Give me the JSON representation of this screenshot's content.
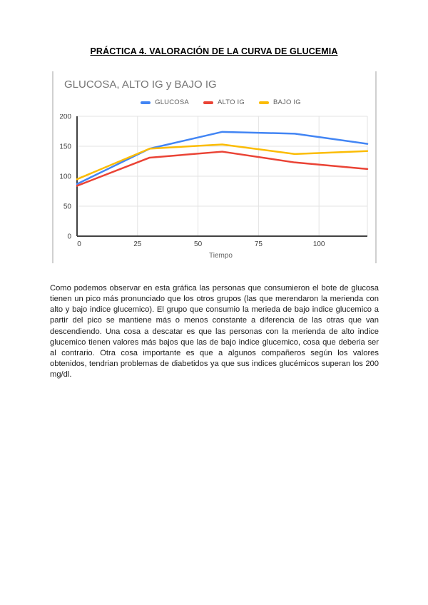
{
  "document": {
    "title": "PRÁCTICA 4. VALORACIÓN DE LA CURVA DE GLUCEMIA",
    "paragraph": "Como podemos observar en esta gráfica las personas que consumieron el bote de glucosa tienen un pico más pronunciado que los otros grupos (las que merendaron la merienda con alto y bajo indice glucemico). El grupo que consumio la merieda de bajo indice glucemico a partir del pico se mantiene más o menos constante a diferencia de las otras que van descendiendo. Una cosa a descatar es que las personas con la merienda de alto indice glucemico tienen valores más bajos que las de bajo indice glucemico, cosa que deberia ser al contrario. Otra cosa importante es que a algunos compañeros según los valores obtenidos, tendrian problemas de diabetidos ya que sus indices glucémicos superan los 200 mg/dl."
  },
  "chart_data": {
    "type": "line",
    "title": "GLUCOSA, ALTO IG y BAJO IG",
    "xlabel": "Tiempo",
    "x": [
      0,
      30,
      60,
      90,
      120
    ],
    "series": [
      {
        "name": "GLUCOSA",
        "color": "#4285F4",
        "values": [
          87,
          146,
          174,
          171,
          154
        ]
      },
      {
        "name": "ALTO IG",
        "color": "#EA4335",
        "values": [
          84,
          131,
          141,
          123,
          112
        ]
      },
      {
        "name": "BAJO IG",
        "color": "#FBBC04",
        "values": [
          95,
          146,
          153,
          137,
          142
        ]
      }
    ],
    "xlim": [
      0,
      120
    ],
    "ylim": [
      0,
      200
    ],
    "x_ticks": [
      0,
      25,
      50,
      75,
      100
    ],
    "y_ticks": [
      0,
      50,
      100,
      150,
      200
    ],
    "grid": true,
    "legend_position": "top-center",
    "axis_color": "#424242",
    "grid_color": "#e3e3e3",
    "tick_label_color": "#424242"
  }
}
